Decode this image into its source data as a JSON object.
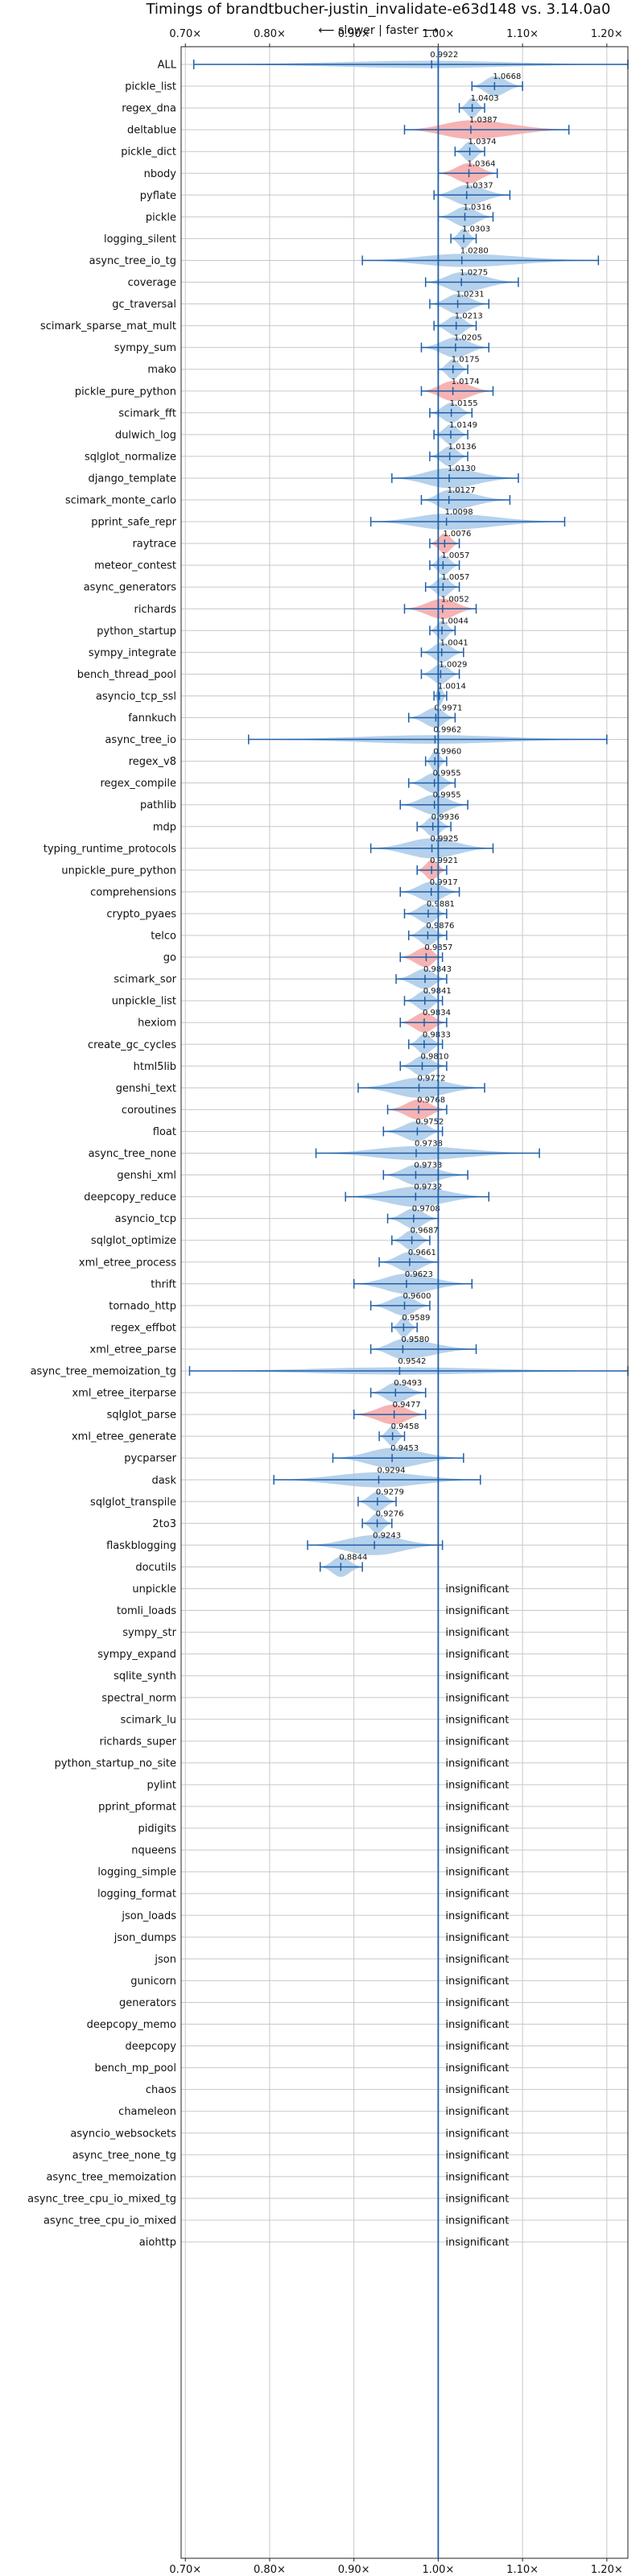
{
  "chart_data": {
    "type": "violin",
    "title": "Timings of brandtbucher-justin_invalidate-e63d148 vs. 3.14.0a0",
    "subtitle": "⟵ slower | faster ⟶",
    "xlim": [
      0.695,
      1.225
    ],
    "x_ticks": [
      0.7,
      0.8,
      0.9,
      1.0,
      1.1,
      1.2
    ],
    "x_tick_labels": [
      "0.70×",
      "0.80×",
      "0.90×",
      "1.00×",
      "1.10×",
      "1.20×"
    ],
    "grid": true,
    "reference_line": 1.0,
    "colors": {
      "faster": "#a9c9e8",
      "slower": "#f4a6a6",
      "whisker": "#1f5fa8",
      "reference": "#1f5fa8",
      "grid": "#c8c8c8"
    },
    "insignificant_text": "insignificant",
    "benchmarks": [
      {
        "name": "ALL",
        "value": 0.9922,
        "low": 0.71,
        "high": 1.225,
        "color": "faster"
      },
      {
        "name": "pickle_list",
        "value": 1.0668,
        "low": 1.04,
        "high": 1.1,
        "color": "faster"
      },
      {
        "name": "regex_dna",
        "value": 1.0403,
        "low": 1.025,
        "high": 1.055,
        "color": "faster"
      },
      {
        "name": "deltablue",
        "value": 1.0387,
        "low": 0.96,
        "high": 1.155,
        "color": "slower"
      },
      {
        "name": "pickle_dict",
        "value": 1.0374,
        "low": 1.02,
        "high": 1.055,
        "color": "faster"
      },
      {
        "name": "nbody",
        "value": 1.0364,
        "low": 1.0,
        "high": 1.07,
        "color": "slower"
      },
      {
        "name": "pyflate",
        "value": 1.0337,
        "low": 0.995,
        "high": 1.085,
        "color": "faster"
      },
      {
        "name": "pickle",
        "value": 1.0316,
        "low": 1.0,
        "high": 1.065,
        "color": "faster"
      },
      {
        "name": "logging_silent",
        "value": 1.0303,
        "low": 1.015,
        "high": 1.045,
        "color": "faster"
      },
      {
        "name": "async_tree_io_tg",
        "value": 1.028,
        "low": 0.91,
        "high": 1.19,
        "color": "faster"
      },
      {
        "name": "coverage",
        "value": 1.0275,
        "low": 0.985,
        "high": 1.095,
        "color": "faster"
      },
      {
        "name": "gc_traversal",
        "value": 1.0231,
        "low": 0.99,
        "high": 1.06,
        "color": "faster"
      },
      {
        "name": "scimark_sparse_mat_mult",
        "value": 1.0213,
        "low": 0.995,
        "high": 1.045,
        "color": "faster"
      },
      {
        "name": "sympy_sum",
        "value": 1.0205,
        "low": 0.98,
        "high": 1.06,
        "color": "faster"
      },
      {
        "name": "mako",
        "value": 1.0175,
        "low": 1.0,
        "high": 1.035,
        "color": "faster"
      },
      {
        "name": "pickle_pure_python",
        "value": 1.0174,
        "low": 0.98,
        "high": 1.065,
        "color": "slower"
      },
      {
        "name": "scimark_fft",
        "value": 1.0155,
        "low": 0.99,
        "high": 1.04,
        "color": "faster"
      },
      {
        "name": "dulwich_log",
        "value": 1.0149,
        "low": 0.995,
        "high": 1.035,
        "color": "faster"
      },
      {
        "name": "sqlglot_normalize",
        "value": 1.0136,
        "low": 0.99,
        "high": 1.035,
        "color": "faster"
      },
      {
        "name": "django_template",
        "value": 1.013,
        "low": 0.945,
        "high": 1.095,
        "color": "faster"
      },
      {
        "name": "scimark_monte_carlo",
        "value": 1.0127,
        "low": 0.98,
        "high": 1.085,
        "color": "faster"
      },
      {
        "name": "pprint_safe_repr",
        "value": 1.0098,
        "low": 0.92,
        "high": 1.15,
        "color": "faster"
      },
      {
        "name": "raytrace",
        "value": 1.0076,
        "low": 0.99,
        "high": 1.025,
        "color": "slower"
      },
      {
        "name": "meteor_contest",
        "value": 1.0057,
        "low": 0.99,
        "high": 1.025,
        "color": "faster"
      },
      {
        "name": "async_generators",
        "value": 1.0057,
        "low": 0.985,
        "high": 1.025,
        "color": "faster"
      },
      {
        "name": "richards",
        "value": 1.0052,
        "low": 0.96,
        "high": 1.045,
        "color": "slower"
      },
      {
        "name": "python_startup",
        "value": 1.0044,
        "low": 0.99,
        "high": 1.02,
        "color": "faster"
      },
      {
        "name": "sympy_integrate",
        "value": 1.0041,
        "low": 0.98,
        "high": 1.03,
        "color": "faster"
      },
      {
        "name": "bench_thread_pool",
        "value": 1.0029,
        "low": 0.98,
        "high": 1.025,
        "color": "faster"
      },
      {
        "name": "asyncio_tcp_ssl",
        "value": 1.0014,
        "low": 0.995,
        "high": 1.01,
        "color": "faster"
      },
      {
        "name": "fannkuch",
        "value": 0.9971,
        "low": 0.965,
        "high": 1.02,
        "color": "faster"
      },
      {
        "name": "async_tree_io",
        "value": 0.9962,
        "low": 0.775,
        "high": 1.2,
        "color": "faster"
      },
      {
        "name": "regex_v8",
        "value": 0.996,
        "low": 0.985,
        "high": 1.01,
        "color": "faster"
      },
      {
        "name": "regex_compile",
        "value": 0.9955,
        "low": 0.965,
        "high": 1.02,
        "color": "faster"
      },
      {
        "name": "pathlib",
        "value": 0.9955,
        "low": 0.955,
        "high": 1.035,
        "color": "faster"
      },
      {
        "name": "mdp",
        "value": 0.9936,
        "low": 0.975,
        "high": 1.015,
        "color": "faster"
      },
      {
        "name": "typing_runtime_protocols",
        "value": 0.9925,
        "low": 0.92,
        "high": 1.065,
        "color": "faster"
      },
      {
        "name": "unpickle_pure_python",
        "value": 0.9921,
        "low": 0.975,
        "high": 1.01,
        "color": "slower"
      },
      {
        "name": "comprehensions",
        "value": 0.9917,
        "low": 0.955,
        "high": 1.025,
        "color": "faster"
      },
      {
        "name": "crypto_pyaes",
        "value": 0.9881,
        "low": 0.96,
        "high": 1.01,
        "color": "faster"
      },
      {
        "name": "telco",
        "value": 0.9876,
        "low": 0.965,
        "high": 1.01,
        "color": "faster"
      },
      {
        "name": "go",
        "value": 0.9857,
        "low": 0.955,
        "high": 1.005,
        "color": "slower"
      },
      {
        "name": "scimark_sor",
        "value": 0.9843,
        "low": 0.95,
        "high": 1.01,
        "color": "faster"
      },
      {
        "name": "unpickle_list",
        "value": 0.9841,
        "low": 0.96,
        "high": 1.005,
        "color": "faster"
      },
      {
        "name": "hexiom",
        "value": 0.9834,
        "low": 0.955,
        "high": 1.01,
        "color": "slower"
      },
      {
        "name": "create_gc_cycles",
        "value": 0.9833,
        "low": 0.965,
        "high": 1.005,
        "color": "faster"
      },
      {
        "name": "html5lib",
        "value": 0.981,
        "low": 0.955,
        "high": 1.01,
        "color": "faster"
      },
      {
        "name": "genshi_text",
        "value": 0.9772,
        "low": 0.905,
        "high": 1.055,
        "color": "faster"
      },
      {
        "name": "coroutines",
        "value": 0.9768,
        "low": 0.94,
        "high": 1.01,
        "color": "slower"
      },
      {
        "name": "float",
        "value": 0.9752,
        "low": 0.935,
        "high": 1.005,
        "color": "faster"
      },
      {
        "name": "async_tree_none",
        "value": 0.9738,
        "low": 0.855,
        "high": 1.12,
        "color": "faster"
      },
      {
        "name": "genshi_xml",
        "value": 0.9733,
        "low": 0.935,
        "high": 1.035,
        "color": "faster"
      },
      {
        "name": "deepcopy_reduce",
        "value": 0.9732,
        "low": 0.89,
        "high": 1.06,
        "color": "faster"
      },
      {
        "name": "asyncio_tcp",
        "value": 0.9708,
        "low": 0.94,
        "high": 1.0,
        "color": "faster"
      },
      {
        "name": "sqlglot_optimize",
        "value": 0.9687,
        "low": 0.945,
        "high": 0.99,
        "color": "faster"
      },
      {
        "name": "xml_etree_process",
        "value": 0.9661,
        "low": 0.93,
        "high": 1.0,
        "color": "faster"
      },
      {
        "name": "thrift",
        "value": 0.9623,
        "low": 0.9,
        "high": 1.04,
        "color": "faster"
      },
      {
        "name": "tornado_http",
        "value": 0.96,
        "low": 0.92,
        "high": 0.99,
        "color": "faster"
      },
      {
        "name": "regex_effbot",
        "value": 0.9589,
        "low": 0.945,
        "high": 0.975,
        "color": "faster"
      },
      {
        "name": "xml_etree_parse",
        "value": 0.958,
        "low": 0.92,
        "high": 1.045,
        "color": "faster"
      },
      {
        "name": "async_tree_memoization_tg",
        "value": 0.9542,
        "low": 0.705,
        "high": 1.225,
        "color": "faster"
      },
      {
        "name": "xml_etree_iterparse",
        "value": 0.9493,
        "low": 0.92,
        "high": 0.985,
        "color": "faster"
      },
      {
        "name": "sqlglot_parse",
        "value": 0.9477,
        "low": 0.9,
        "high": 0.985,
        "color": "slower"
      },
      {
        "name": "xml_etree_generate",
        "value": 0.9458,
        "low": 0.93,
        "high": 0.96,
        "color": "faster"
      },
      {
        "name": "pycparser",
        "value": 0.9453,
        "low": 0.875,
        "high": 1.03,
        "color": "faster"
      },
      {
        "name": "dask",
        "value": 0.9294,
        "low": 0.805,
        "high": 1.05,
        "color": "faster"
      },
      {
        "name": "sqlglot_transpile",
        "value": 0.9279,
        "low": 0.905,
        "high": 0.95,
        "color": "faster"
      },
      {
        "name": "2to3",
        "value": 0.9276,
        "low": 0.91,
        "high": 0.945,
        "color": "faster"
      },
      {
        "name": "flaskblogging",
        "value": 0.9243,
        "low": 0.845,
        "high": 1.005,
        "color": "faster"
      },
      {
        "name": "docutils",
        "value": 0.8844,
        "low": 0.86,
        "high": 0.91,
        "color": "faster"
      }
    ],
    "insignificant": [
      "unpickle",
      "tomli_loads",
      "sympy_str",
      "sympy_expand",
      "sqlite_synth",
      "spectral_norm",
      "scimark_lu",
      "richards_super",
      "python_startup_no_site",
      "pylint",
      "pprint_pformat",
      "pidigits",
      "nqueens",
      "logging_simple",
      "logging_format",
      "json_loads",
      "json_dumps",
      "json",
      "gunicorn",
      "generators",
      "deepcopy_memo",
      "deepcopy",
      "bench_mp_pool",
      "chaos",
      "chameleon",
      "asyncio_websockets",
      "async_tree_none_tg",
      "async_tree_memoization",
      "async_tree_cpu_io_mixed_tg",
      "async_tree_cpu_io_mixed",
      "aiohttp"
    ]
  }
}
